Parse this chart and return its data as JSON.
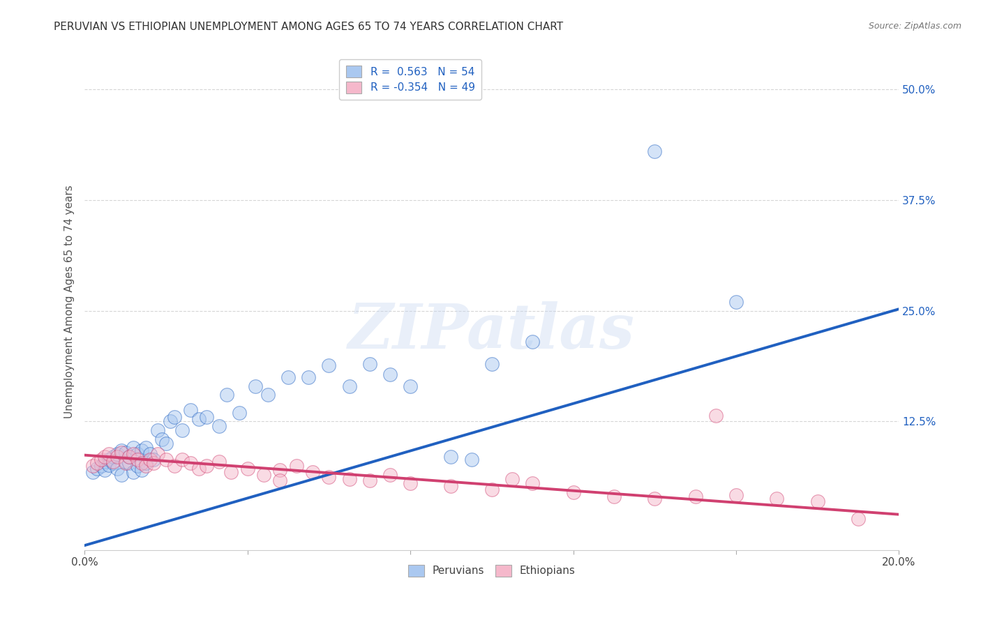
{
  "title": "PERUVIAN VS ETHIOPIAN UNEMPLOYMENT AMONG AGES 65 TO 74 YEARS CORRELATION CHART",
  "source": "Source: ZipAtlas.com",
  "ylabel": "Unemployment Among Ages 65 to 74 years",
  "ytick_values": [
    0.125,
    0.25,
    0.375,
    0.5
  ],
  "xlim": [
    0.0,
    0.2
  ],
  "ylim": [
    -0.02,
    0.54
  ],
  "legend_peru": "R =  0.563   N = 54",
  "legend_eth": "R = -0.354   N = 49",
  "peruvian_color": "#aac8f0",
  "ethiopian_color": "#f5b8cb",
  "peruvian_line_color": "#2060c0",
  "ethiopian_line_color": "#d04070",
  "watermark_text": "ZIPatlas",
  "background_color": "#ffffff",
  "grid_color": "#cccccc",
  "title_color": "#333333",
  "peru_line_x0": 0.0,
  "peru_line_y0": -0.015,
  "peru_line_x1": 0.2,
  "peru_line_y1": 0.252,
  "eth_line_x0": 0.0,
  "eth_line_y0": 0.087,
  "eth_line_x1": 0.2,
  "eth_line_y1": 0.02,
  "peru_scatter_x": [
    0.002,
    0.003,
    0.004,
    0.005,
    0.005,
    0.006,
    0.006,
    0.007,
    0.007,
    0.008,
    0.008,
    0.009,
    0.009,
    0.01,
    0.01,
    0.011,
    0.011,
    0.012,
    0.012,
    0.013,
    0.013,
    0.014,
    0.014,
    0.015,
    0.015,
    0.016,
    0.017,
    0.018,
    0.019,
    0.02,
    0.021,
    0.022,
    0.024,
    0.026,
    0.028,
    0.03,
    0.033,
    0.035,
    0.038,
    0.042,
    0.045,
    0.05,
    0.055,
    0.06,
    0.065,
    0.07,
    0.075,
    0.08,
    0.09,
    0.095,
    0.1,
    0.11,
    0.14,
    0.16
  ],
  "peru_scatter_y": [
    0.068,
    0.072,
    0.075,
    0.08,
    0.07,
    0.082,
    0.076,
    0.085,
    0.078,
    0.088,
    0.072,
    0.092,
    0.065,
    0.09,
    0.08,
    0.078,
    0.085,
    0.095,
    0.068,
    0.088,
    0.075,
    0.092,
    0.07,
    0.095,
    0.078,
    0.088,
    0.082,
    0.115,
    0.105,
    0.1,
    0.125,
    0.13,
    0.115,
    0.138,
    0.128,
    0.13,
    0.12,
    0.155,
    0.135,
    0.165,
    0.155,
    0.175,
    0.175,
    0.188,
    0.165,
    0.19,
    0.178,
    0.165,
    0.085,
    0.082,
    0.19,
    0.215,
    0.43,
    0.26
  ],
  "eth_scatter_x": [
    0.002,
    0.003,
    0.004,
    0.005,
    0.006,
    0.007,
    0.008,
    0.009,
    0.01,
    0.011,
    0.012,
    0.013,
    0.014,
    0.015,
    0.016,
    0.017,
    0.018,
    0.02,
    0.022,
    0.024,
    0.026,
    0.028,
    0.03,
    0.033,
    0.036,
    0.04,
    0.044,
    0.048,
    0.052,
    0.056,
    0.06,
    0.065,
    0.07,
    0.075,
    0.08,
    0.09,
    0.1,
    0.11,
    0.12,
    0.13,
    0.14,
    0.15,
    0.16,
    0.17,
    0.18,
    0.19,
    0.155,
    0.105,
    0.048
  ],
  "eth_scatter_y": [
    0.075,
    0.078,
    0.082,
    0.085,
    0.088,
    0.08,
    0.085,
    0.09,
    0.078,
    0.085,
    0.088,
    0.082,
    0.078,
    0.075,
    0.082,
    0.078,
    0.088,
    0.082,
    0.075,
    0.082,
    0.078,
    0.072,
    0.075,
    0.08,
    0.068,
    0.072,
    0.065,
    0.07,
    0.075,
    0.068,
    0.062,
    0.06,
    0.058,
    0.065,
    0.055,
    0.052,
    0.048,
    0.055,
    0.045,
    0.04,
    0.038,
    0.04,
    0.042,
    0.038,
    0.035,
    0.015,
    0.132,
    0.06,
    0.058
  ]
}
